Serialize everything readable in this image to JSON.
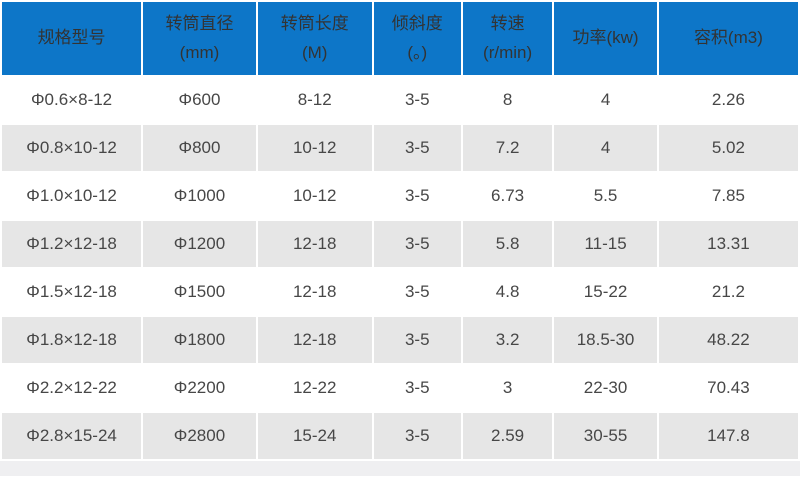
{
  "chart_data": {
    "type": "table",
    "columns": [
      {
        "line1": "规格型号",
        "line2": ""
      },
      {
        "line1": "转筒直径",
        "line2": "(mm)"
      },
      {
        "line1": "转筒长度",
        "line2": "(M)"
      },
      {
        "line1": "倾斜度",
        "line2": "(。)"
      },
      {
        "line1": "转速",
        "line2": "(r/min)"
      },
      {
        "line1": "功率(kw)",
        "line2": ""
      },
      {
        "line1": "容积(m3)",
        "line2": ""
      }
    ],
    "rows": [
      [
        "Φ0.6×8-12",
        "Φ600",
        "8-12",
        "3-5",
        "8",
        "4",
        "2.26"
      ],
      [
        "Φ0.8×10-12",
        "Φ800",
        "10-12",
        "3-5",
        "7.2",
        "4",
        "5.02"
      ],
      [
        "Φ1.0×10-12",
        "Φ1000",
        "10-12",
        "3-5",
        "6.73",
        "5.5",
        "7.85"
      ],
      [
        "Φ1.2×12-18",
        "Φ1200",
        "12-18",
        "3-5",
        "5.8",
        "11-15",
        "13.31"
      ],
      [
        "Φ1.5×12-18",
        "Φ1500",
        "12-18",
        "3-5",
        "4.8",
        "15-22",
        "21.2"
      ],
      [
        "Φ1.8×12-18",
        "Φ1800",
        "12-18",
        "3-5",
        "3.2",
        "18.5-30",
        "48.22"
      ],
      [
        "Φ2.2×12-22",
        "Φ2200",
        "12-22",
        "3-5",
        "3",
        "22-30",
        "70.43"
      ],
      [
        "Φ2.8×15-24",
        "Φ2800",
        "15-24",
        "3-5",
        "2.59",
        "30-55",
        "147.8"
      ]
    ]
  },
  "colors": {
    "header_bg": "#0d76c8",
    "header_text": "#333333",
    "body_text": "#474747",
    "row_white": "#ffffff",
    "row_alt_gray": "#e6e6e6",
    "footer_strip": "#efeff1"
  }
}
